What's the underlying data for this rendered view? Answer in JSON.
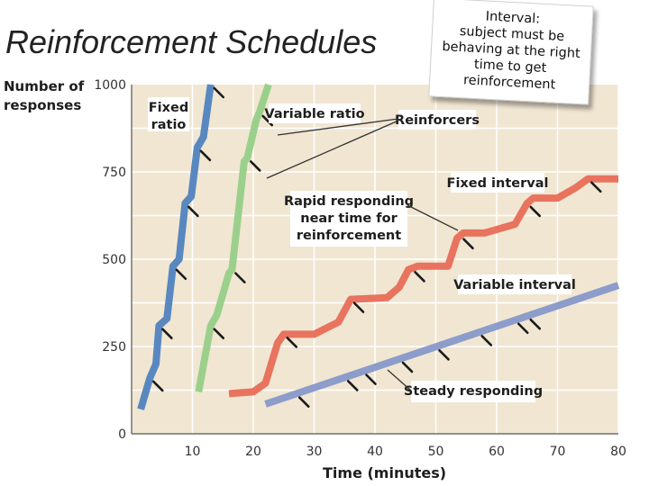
{
  "slide": {
    "title": "Reinforcement Schedules",
    "note_lines": [
      "Interval:",
      "subject must be",
      "behaving at the right",
      "time to get",
      "reinforcement"
    ]
  },
  "colors": {
    "background": "#f1e6d2",
    "grid": "#ffffff",
    "fixed_ratio": "#5888bf",
    "variable_ratio": "#9bd08c",
    "fixed_interval": "#e8735e",
    "variable_interval": "#8c9ccb",
    "label_box": "#ffffff",
    "text": "#1e1e1e"
  },
  "chart_data": {
    "type": "line",
    "title": "",
    "xlabel": "Time (minutes)",
    "ylabel": "Number of responses",
    "xlim": [
      0,
      80
    ],
    "ylim": [
      0,
      1000
    ],
    "xticks": [
      10,
      20,
      30,
      40,
      50,
      60,
      70,
      80
    ],
    "yticks": [
      0,
      250,
      500,
      750,
      1000
    ],
    "grid": true,
    "series": [
      {
        "name": "Fixed ratio",
        "points": [
          [
            1.5,
            70
          ],
          [
            3,
            160
          ],
          [
            4,
            200
          ],
          [
            4.5,
            310
          ],
          [
            5.8,
            330
          ],
          [
            6.8,
            480
          ],
          [
            7.8,
            500
          ],
          [
            8.8,
            660
          ],
          [
            9.8,
            680
          ],
          [
            10.8,
            820
          ],
          [
            11.8,
            850
          ],
          [
            13,
            1000
          ]
        ],
        "reinforcers_x": [
          3,
          4.5,
          6.8,
          8.8,
          10.8,
          13
        ],
        "label": "Fixed ratio"
      },
      {
        "name": "Variable ratio",
        "points": [
          [
            11,
            120
          ],
          [
            13,
            310
          ],
          [
            14,
            340
          ],
          [
            16,
            460
          ],
          [
            16.5,
            470
          ],
          [
            18.5,
            780
          ],
          [
            19,
            790
          ],
          [
            20.5,
            900
          ],
          [
            21,
            920
          ],
          [
            22.5,
            1000
          ]
        ],
        "reinforcers_x": [
          13,
          16.5,
          19,
          21
        ],
        "label": "Variable ratio"
      },
      {
        "name": "Fixed interval",
        "points": [
          [
            16,
            115
          ],
          [
            20,
            120
          ],
          [
            22,
            145
          ],
          [
            24,
            260
          ],
          [
            25,
            285
          ],
          [
            30,
            285
          ],
          [
            34,
            320
          ],
          [
            36,
            385
          ],
          [
            42,
            390
          ],
          [
            44,
            420
          ],
          [
            45.5,
            470
          ],
          [
            47,
            480
          ],
          [
            52,
            480
          ],
          [
            53.5,
            560
          ],
          [
            54.5,
            575
          ],
          [
            58,
            575
          ],
          [
            63,
            600
          ],
          [
            65,
            660
          ],
          [
            66,
            675
          ],
          [
            70,
            675
          ],
          [
            73,
            705
          ],
          [
            75,
            730
          ],
          [
            80,
            730
          ]
        ],
        "reinforcers_x": [
          25,
          36,
          46,
          54,
          65,
          75
        ],
        "label": "Fixed interval"
      },
      {
        "name": "Variable interval",
        "points": [
          [
            22,
            85
          ],
          [
            80,
            425
          ]
        ],
        "reinforcers_x": [
          27,
          35,
          38,
          44,
          50,
          57,
          63,
          65
        ],
        "label": "Variable interval"
      }
    ],
    "annotations": {
      "reinforcers": "Reinforcers",
      "rapid_responding": [
        "Rapid responding",
        "near time for",
        "reinforcement"
      ],
      "steady_responding": "Steady responding"
    }
  }
}
